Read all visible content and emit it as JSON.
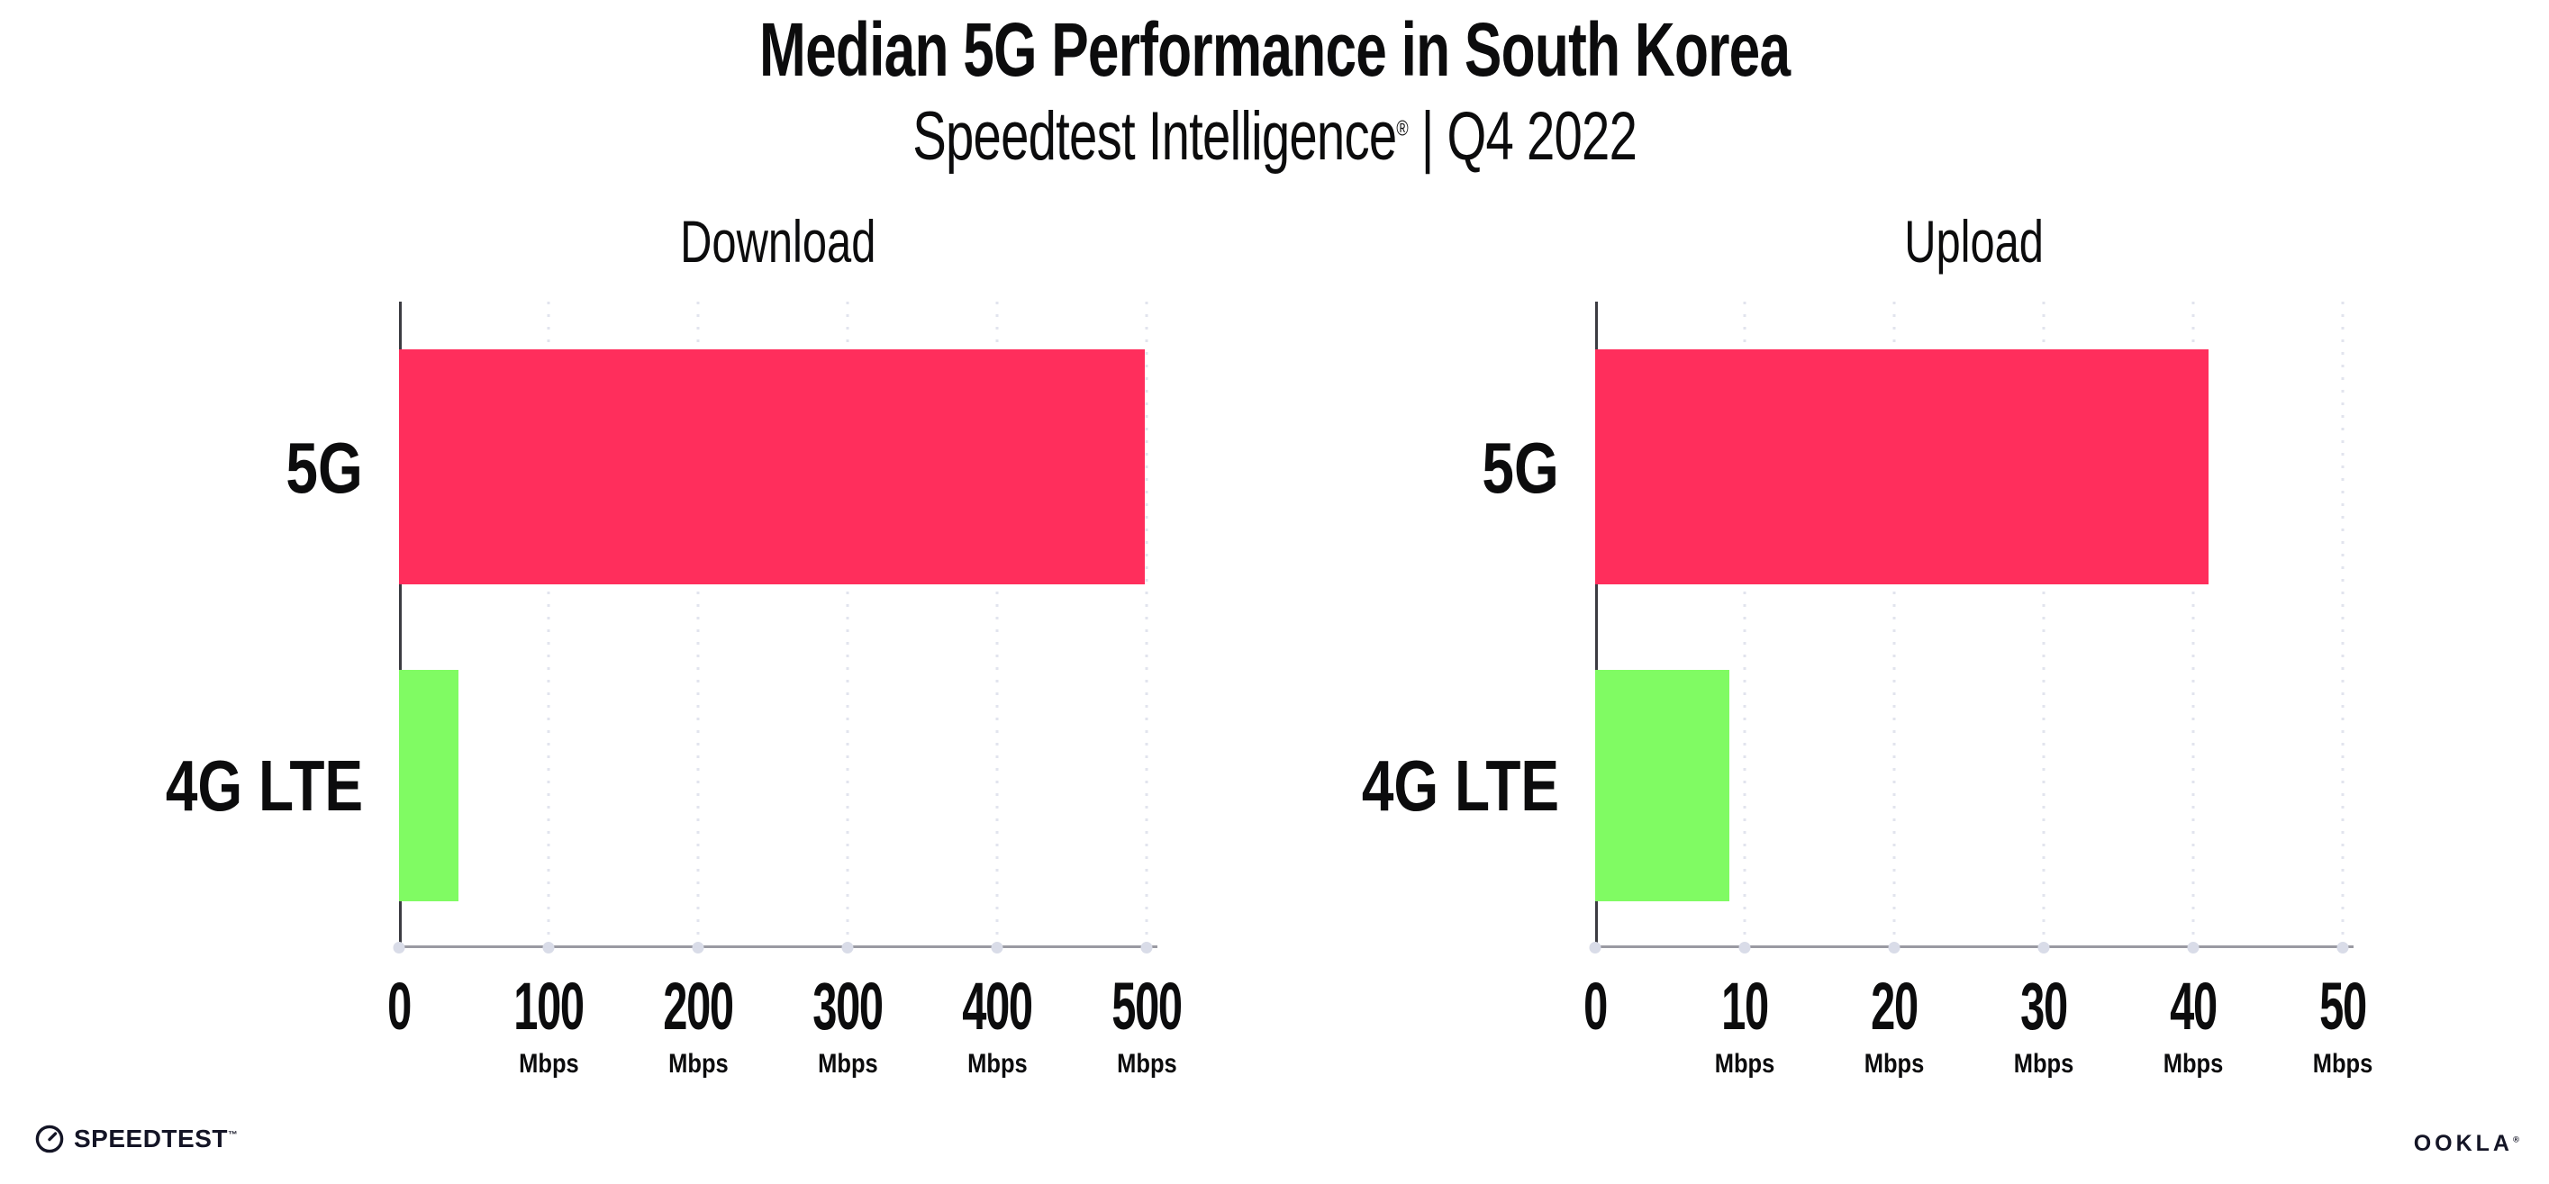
{
  "header": {
    "title": "Median 5G Performance in South Korea",
    "subtitle_brand": "Speedtest Intelligence",
    "subtitle_reg": "®",
    "subtitle_rest": " | Q4 2022"
  },
  "chart_data": [
    {
      "type": "bar",
      "orientation": "horizontal",
      "title": "Download",
      "categories": [
        "5G",
        "4G LTE"
      ],
      "values": [
        499,
        40
      ],
      "unit": "Mbps",
      "xlim": [
        0,
        500
      ],
      "xticks": [
        0,
        100,
        200,
        300,
        400,
        500
      ],
      "bar_colors": [
        "#FF2E5C",
        "#80FB63"
      ],
      "grid": "dotted-vertical",
      "legend": "none"
    },
    {
      "type": "bar",
      "orientation": "horizontal",
      "title": "Upload",
      "categories": [
        "5G",
        "4G LTE"
      ],
      "values": [
        41,
        9
      ],
      "unit": "Mbps",
      "xlim": [
        0,
        50
      ],
      "xticks": [
        0,
        10,
        20,
        30,
        40,
        50
      ],
      "bar_colors": [
        "#FF2E5C",
        "#80FB63"
      ],
      "grid": "dotted-vertical",
      "legend": "none"
    }
  ],
  "colors": {
    "bar_5g": "#FF2E5C",
    "bar_4g_lte": "#80FB63",
    "gridline": "#E2E4EE",
    "x_axis": "#9A9AA2",
    "y_axis": "#3C3C42",
    "text": "#0C0C0D"
  },
  "footer": {
    "speedtest_label": "SPEEDTEST",
    "speedtest_reg": "™",
    "speedtest_icon": "gauge-icon",
    "ookla_label": "OOKLA",
    "ookla_reg": "®"
  }
}
